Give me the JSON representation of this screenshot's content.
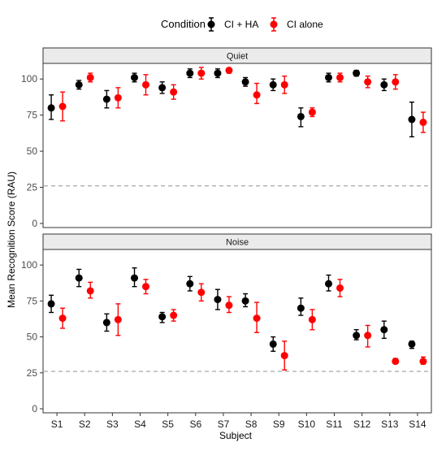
{
  "chart_data": {
    "type": "scatter",
    "legend": {
      "title": "Condition",
      "placement": "top",
      "entries": [
        {
          "name": "CI + HA",
          "color": "#000000"
        },
        {
          "name": "CI alone",
          "color": "#ff0000"
        }
      ]
    },
    "xlabel": "Subject",
    "ylabel": "Mean Recognition Score (RAU)",
    "categories": [
      "S1",
      "S2",
      "S3",
      "S4",
      "S5",
      "S6",
      "S7",
      "S8",
      "S9",
      "S10",
      "S11",
      "S12",
      "S13",
      "S14"
    ],
    "ylim": [
      0,
      108
    ],
    "yticks": [
      0,
      25,
      50,
      75,
      100
    ],
    "reference_line": 26,
    "panels": [
      {
        "title": "Quiet",
        "series": [
          {
            "name": "CI + HA",
            "color": "#000000",
            "values": [
              80,
              96,
              86,
              101,
              94,
              104,
              104,
              98,
              96,
              74,
              101,
              104,
              96,
              72
            ],
            "lower": [
              72,
              93,
              80,
              98,
              90,
              101,
              101,
              95,
              92,
              67,
              98,
              102,
              92,
              60
            ],
            "upper": [
              89,
              99,
              92,
              104,
              98,
              107,
              107,
              101,
              100,
              80,
              104,
              106,
              100,
              84
            ]
          },
          {
            "name": "CI alone",
            "color": "#ff0000",
            "values": [
              81,
              101,
              87,
              96,
              91,
              104,
              106,
              89,
              96,
              77,
              101,
              98,
              98,
              70
            ],
            "lower": [
              71,
              98,
              80,
              89,
              86,
              100,
              104,
              83,
              90,
              74,
              98,
              94,
              93,
              63
            ],
            "upper": [
              91,
              104,
              94,
              103,
              96,
              108,
              107,
              97,
              102,
              80,
              104,
              102,
              103,
              77
            ]
          }
        ]
      },
      {
        "title": "Noise",
        "series": [
          {
            "name": "CI + HA",
            "color": "#000000",
            "values": [
              73,
              91,
              60,
              91,
              64,
              87,
              76,
              75,
              45,
              70,
              87,
              51,
              55,
              45
            ],
            "lower": [
              67,
              85,
              54,
              85,
              60,
              82,
              69,
              71,
              40,
              65,
              82,
              48,
              49,
              42
            ],
            "upper": [
              79,
              97,
              66,
              98,
              67,
              92,
              83,
              80,
              50,
              77,
              93,
              55,
              61,
              47
            ]
          },
          {
            "name": "CI alone",
            "color": "#ff0000",
            "values": [
              63,
              82,
              62,
              85,
              65,
              81,
              72,
              63,
              37,
              62,
              84,
              51,
              33,
              33
            ],
            "lower": [
              56,
              77,
              51,
              80,
              61,
              75,
              67,
              53,
              27,
              55,
              78,
              43,
              32,
              31
            ],
            "upper": [
              70,
              88,
              73,
              90,
              69,
              87,
              78,
              74,
              47,
              69,
              90,
              58,
              35,
              36
            ]
          }
        ]
      }
    ]
  }
}
